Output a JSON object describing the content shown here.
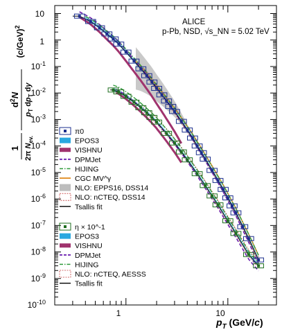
{
  "chart_data": {
    "type": "scatter",
    "x_scale": "log",
    "y_scale": "log",
    "xlim": [
      0.2,
      30
    ],
    "ylim": [
      1e-10,
      20
    ],
    "x_tick_labels": [
      "1",
      "10"
    ],
    "y_tick_labels": [
      "10",
      "1",
      "10^-1",
      "10^-2",
      "10^-3",
      "10^-4",
      "10^-5",
      "10^-6",
      "10^-7",
      "10^-8",
      "10^-9",
      "10^-10"
    ],
    "xlabel": "p_T (GeV/c)",
    "ylabel": "1/(2π N_ev.) d²N/(p_T dp_T dy) (c/GeV)²",
    "annotation": {
      "line1": "ALICE",
      "line2": "p-Pb, NSD, √s_NN = 5.02 TeV"
    },
    "legend_pi0": [
      "π0",
      "EPOS3",
      "VISHNU",
      "DPMJet",
      "HIJING",
      "CGC MV^γ",
      "NLO: EPPS16, DSS14",
      "NLO: nCTEQ, DSS14",
      "Tsallis fit"
    ],
    "legend_eta": [
      "η × 10^-1",
      "EPOS3",
      "VISHNU",
      "DPMJet",
      "HIJING",
      "NLO: nCTEQ, AESSS",
      "Tsallis fit"
    ],
    "colors": {
      "pi0_data": "#1a2d8c",
      "eta_data": "#1f6e1f",
      "epos3": "#29a8e0",
      "vishnu": "#a0336e",
      "dpmjet": "#6a1fb0",
      "hijing": "#2e9a3a",
      "cgc": "#e08a1e",
      "nlo_epps": "#bdbdbd",
      "nlo_ncteq": "#c43c3c",
      "tsallis": "#000000"
    },
    "series": [
      {
        "name": "π0",
        "x": [
          0.35,
          0.45,
          0.55,
          0.65,
          0.75,
          0.85,
          1.0,
          1.2,
          1.4,
          1.6,
          1.8,
          2.0,
          2.25,
          2.5,
          2.75,
          3.0,
          3.5,
          4.0,
          4.5,
          5.0,
          5.5,
          6.0,
          7.0,
          8.0,
          9.0,
          10.0,
          11.0,
          12.0,
          14.0,
          16.0,
          20.0
        ],
        "y": [
          8.0,
          5.0,
          2.9,
          1.7,
          1.1,
          0.7,
          0.35,
          0.16,
          0.082,
          0.045,
          0.026,
          0.015,
          0.0085,
          0.005,
          0.0031,
          0.002,
          0.00085,
          0.0004,
          0.0002,
          0.0001,
          5.6e-05,
          3.2e-05,
          1.2e-05,
          5e-06,
          2.3e-06,
          1.1e-06,
          5.5e-07,
          3e-07,
          9e-08,
          3.2e-08,
          5e-09
        ]
      },
      {
        "name": "η × 10^-1",
        "x": [
          0.75,
          0.85,
          1.0,
          1.2,
          1.4,
          1.6,
          1.8,
          2.0,
          2.5,
          3.0,
          3.5,
          4.0,
          5.0,
          6.0,
          7.0,
          8.0,
          10.0,
          12.0,
          16.0,
          20.0
        ],
        "y": [
          0.013,
          0.011,
          0.0075,
          0.0045,
          0.0028,
          0.0018,
          0.0012,
          0.0008,
          0.0003,
          0.00013,
          6e-05,
          3e-05,
          9e-06,
          3.2e-06,
          1.3e-06,
          6e-07,
          1.5e-07,
          5e-08,
          8e-09,
          3e-09
        ]
      }
    ]
  }
}
